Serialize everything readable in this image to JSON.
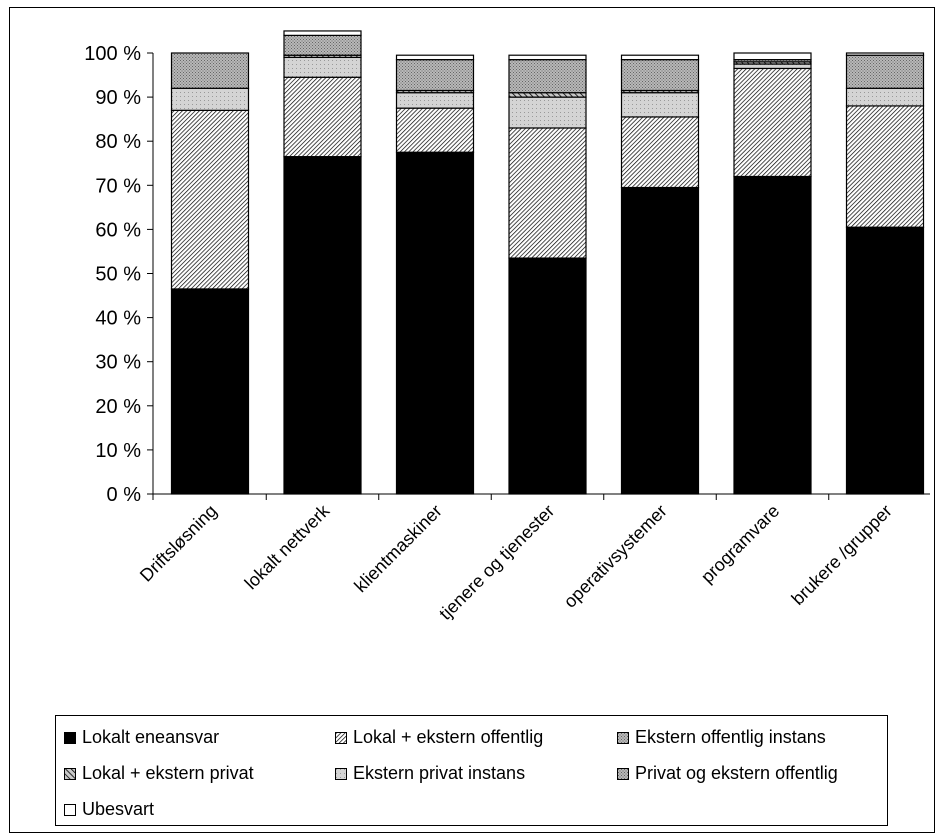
{
  "chart_data": {
    "type": "bar",
    "stacked": true,
    "percent": true,
    "categories": [
      "Driftsløsning",
      "lokalt nettverk",
      "klientmaskiner",
      "tjenere og tjenester",
      "operativsystemer",
      "programvare",
      "brukere /grupper"
    ],
    "y_tick_labels": [
      "0 %",
      "10 %",
      "20 %",
      "30 %",
      "40 %",
      "50 %",
      "60 %",
      "70 %",
      "80 %",
      "90 %",
      "100 %"
    ],
    "ylim": [
      0,
      100
    ],
    "grid": false,
    "legend_position": "bottom",
    "series": [
      {
        "name": "Lokalt eneansvar",
        "values": [
          46.5,
          76.5,
          77.5,
          53.5,
          69.5,
          72,
          60.5
        ],
        "color": "#000000",
        "pattern": "solid"
      },
      {
        "name": "Lokal + ekstern offentlig",
        "values": [
          40.5,
          18,
          10,
          29.5,
          16,
          24.5,
          27.5
        ],
        "color": "#ffffff",
        "pattern": "fine-diagonal"
      },
      {
        "name": "Ekstern offentlig instans",
        "values": [
          0,
          0,
          0,
          0,
          0,
          0,
          0
        ],
        "color": "#c0c0c0",
        "pattern": "gray-dots"
      },
      {
        "name": "Ekstern privat instans",
        "values": [
          5,
          4.5,
          3.5,
          7,
          5.5,
          1,
          4
        ],
        "color": "#c0c0c0",
        "pattern": "light-gray"
      },
      {
        "name": "Lokal + ekstern privat",
        "values": [
          0,
          0.5,
          0.5,
          1,
          0.5,
          0.5,
          0
        ],
        "color": "#808080",
        "pattern": "coarse-diagonal"
      },
      {
        "name": "Privat og ekstern offentlig",
        "values": [
          8,
          4.5,
          7,
          7.5,
          7,
          0.5,
          7.5
        ],
        "color": "#c0c0c0",
        "pattern": "gray-dots"
      },
      {
        "name": "Ubesvart",
        "values": [
          0,
          1,
          1,
          1,
          1,
          1.5,
          0.5
        ],
        "color": "#ffffff",
        "pattern": "white"
      }
    ]
  },
  "legend": {
    "items": [
      {
        "label": "Lokalt eneansvar",
        "pattern": "solid"
      },
      {
        "label": "Lokal + ekstern offentlig",
        "pattern": "fine-diagonal"
      },
      {
        "label": "Ekstern offentlig instans",
        "pattern": "gray-dots"
      },
      {
        "label": "Lokal + ekstern privat",
        "pattern": "coarse-diagonal"
      },
      {
        "label": "Ekstern privat instans",
        "pattern": "light-gray"
      },
      {
        "label": "Privat og ekstern offentlig",
        "pattern": "gray-dots"
      },
      {
        "label": "Ubesvart",
        "pattern": "white"
      }
    ]
  }
}
